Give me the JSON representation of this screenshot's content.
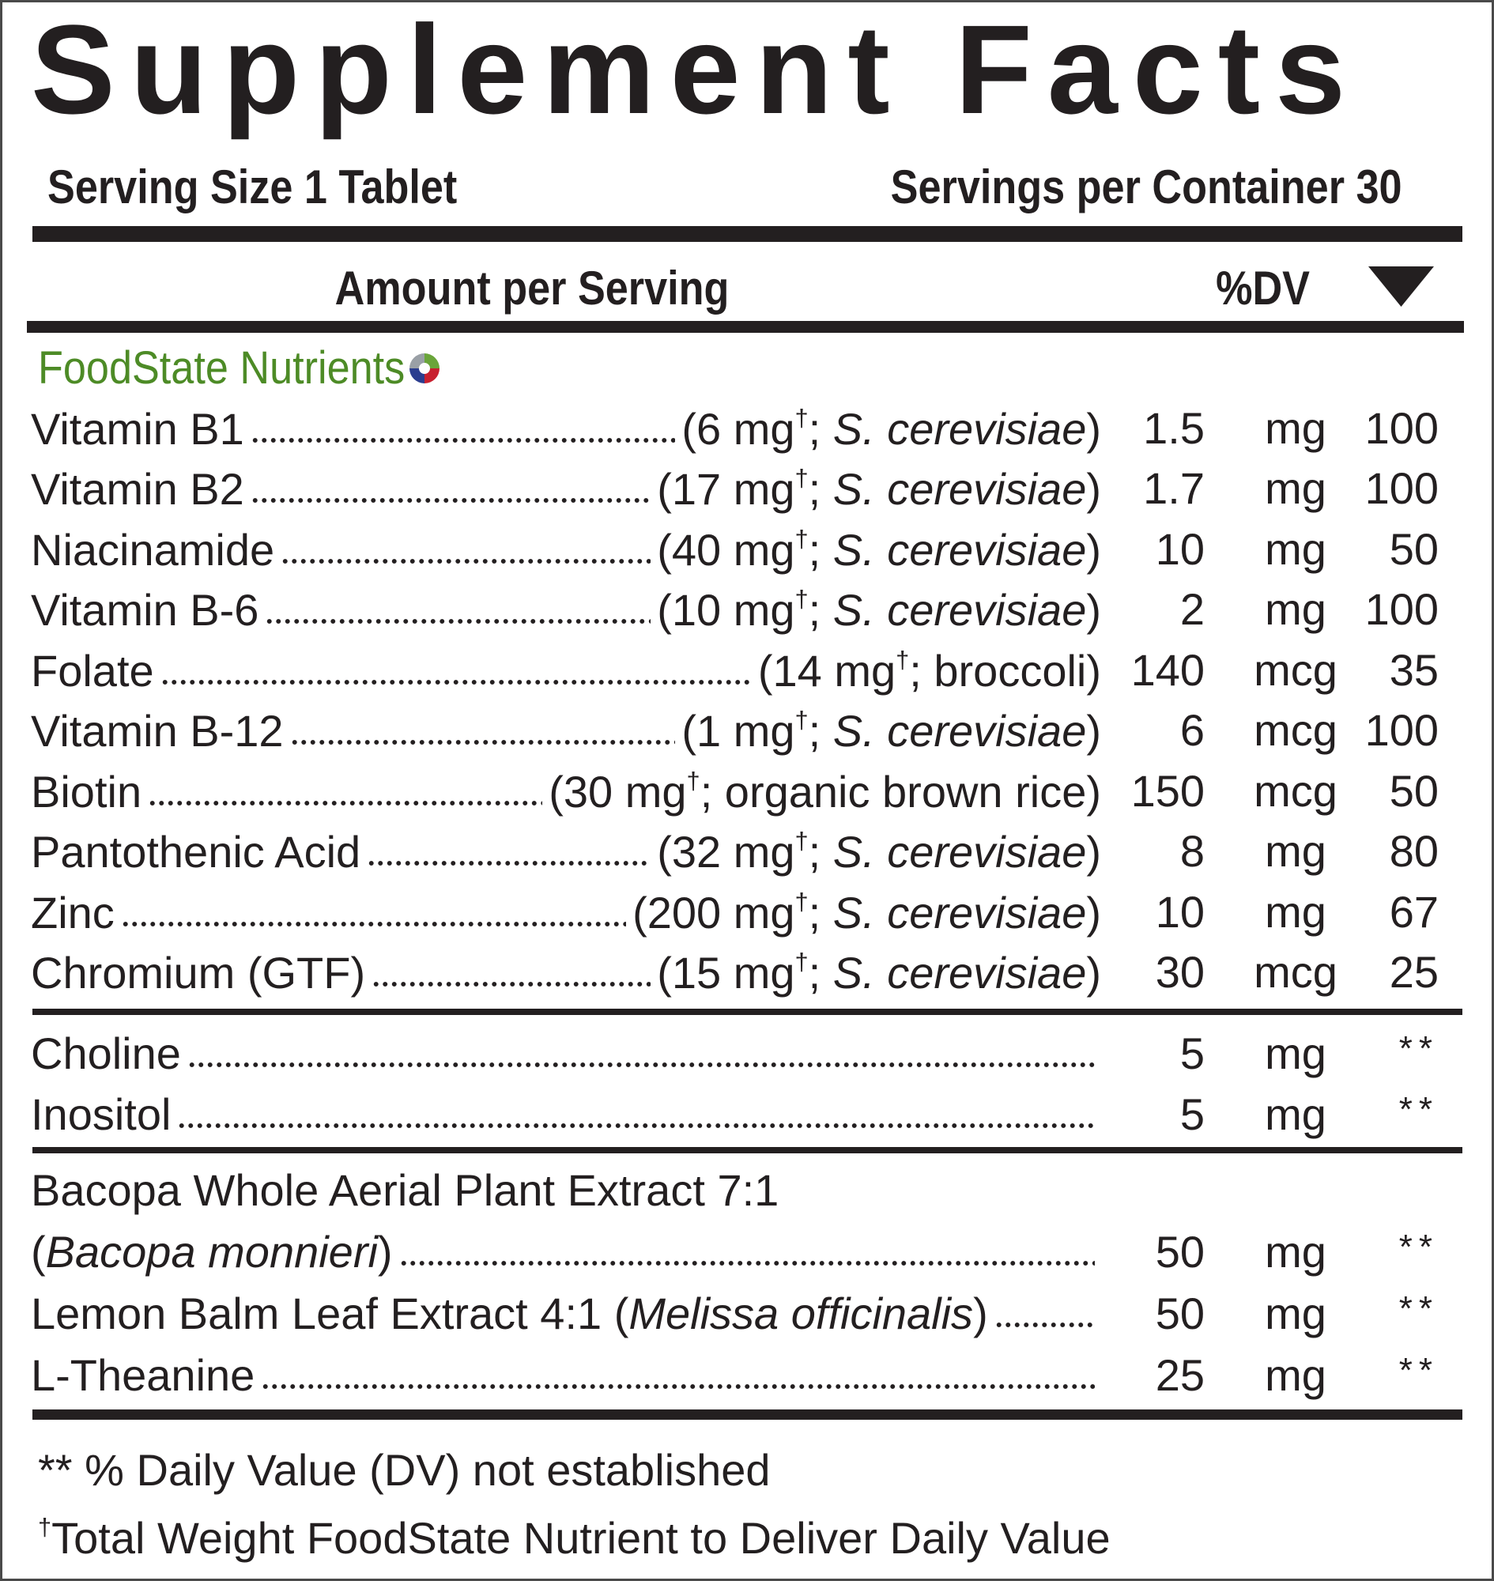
{
  "title": "Supplement Facts",
  "serving_size": "Serving Size 1 Tablet",
  "servings_per_container": "Servings per Container 30",
  "header": {
    "amount": "Amount per Serving",
    "dv": "%DV"
  },
  "section_title": "FoodState Nutrients",
  "groups": [
    {
      "rows": [
        {
          "name": [
            {
              "text": "Vitamin B1"
            }
          ],
          "source": [
            {
              "text": "(6 mg"
            },
            {
              "text": "†",
              "sup": true
            },
            {
              "text": "; "
            },
            {
              "text": "S. cerevisiae",
              "italic": true
            },
            {
              "text": ")"
            }
          ],
          "amount": 1.5,
          "unit": "mg",
          "dv": 100
        },
        {
          "name": [
            {
              "text": "Vitamin B2"
            }
          ],
          "source": [
            {
              "text": "(17 mg"
            },
            {
              "text": "†",
              "sup": true
            },
            {
              "text": "; "
            },
            {
              "text": "S. cerevisiae",
              "italic": true
            },
            {
              "text": ")"
            }
          ],
          "amount": 1.7,
          "unit": "mg",
          "dv": 100
        },
        {
          "name": [
            {
              "text": "Niacinamide"
            }
          ],
          "source": [
            {
              "text": "(40 mg"
            },
            {
              "text": "†",
              "sup": true
            },
            {
              "text": "; "
            },
            {
              "text": "S. cerevisiae",
              "italic": true
            },
            {
              "text": ")"
            }
          ],
          "amount": 10,
          "unit": "mg",
          "dv": 50
        },
        {
          "name": [
            {
              "text": "Vitamin B-6"
            }
          ],
          "source": [
            {
              "text": "(10 mg"
            },
            {
              "text": "†",
              "sup": true
            },
            {
              "text": "; "
            },
            {
              "text": "S. cerevisiae",
              "italic": true
            },
            {
              "text": ")"
            }
          ],
          "amount": 2,
          "unit": "mg",
          "dv": 100
        },
        {
          "name": [
            {
              "text": "Folate"
            }
          ],
          "source": [
            {
              "text": "(14 mg"
            },
            {
              "text": "†",
              "sup": true
            },
            {
              "text": "; broccoli)"
            }
          ],
          "amount": 140,
          "unit": "mcg",
          "dv": 35
        },
        {
          "name": [
            {
              "text": "Vitamin B-12"
            }
          ],
          "source": [
            {
              "text": "(1 mg"
            },
            {
              "text": "†",
              "sup": true
            },
            {
              "text": "; "
            },
            {
              "text": "S. cerevisiae",
              "italic": true
            },
            {
              "text": ")"
            }
          ],
          "amount": 6,
          "unit": "mcg",
          "dv": 100
        },
        {
          "name": [
            {
              "text": "Biotin"
            }
          ],
          "source": [
            {
              "text": "(30 mg"
            },
            {
              "text": "†",
              "sup": true
            },
            {
              "text": "; organic brown rice)"
            }
          ],
          "amount": 150,
          "unit": "mcg",
          "dv": 50
        },
        {
          "name": [
            {
              "text": "Pantothenic Acid"
            }
          ],
          "source": [
            {
              "text": "(32 mg"
            },
            {
              "text": "†",
              "sup": true
            },
            {
              "text": "; "
            },
            {
              "text": "S. cerevisiae",
              "italic": true
            },
            {
              "text": ")"
            }
          ],
          "amount": 8,
          "unit": "mg",
          "dv": 80
        },
        {
          "name": [
            {
              "text": "Zinc"
            }
          ],
          "source": [
            {
              "text": "(200 mg"
            },
            {
              "text": "†",
              "sup": true
            },
            {
              "text": "; "
            },
            {
              "text": "S. cerevisiae",
              "italic": true
            },
            {
              "text": ")"
            }
          ],
          "amount": 10,
          "unit": "mg",
          "dv": 67
        },
        {
          "name": [
            {
              "text": "Chromium (GTF)"
            }
          ],
          "source": [
            {
              "text": "(15 mg"
            },
            {
              "text": "†",
              "sup": true
            },
            {
              "text": "; "
            },
            {
              "text": "S. cerevisiae",
              "italic": true
            },
            {
              "text": ")"
            }
          ],
          "amount": 30,
          "unit": "mcg",
          "dv": 25
        }
      ]
    },
    {
      "rows": [
        {
          "name": [
            {
              "text": "Choline"
            }
          ],
          "amount": 5,
          "unit": "mg",
          "dv": "**"
        },
        {
          "name": [
            {
              "text": "Inositol"
            }
          ],
          "amount": 5,
          "unit": "mg",
          "dv": "**"
        }
      ]
    },
    {
      "rows": [
        {
          "name": [
            {
              "text": "Bacopa Whole Aerial Plant Extract 7:1"
            }
          ]
        },
        {
          "name": [
            {
              "text": "("
            },
            {
              "text": "Bacopa monnieri",
              "italic": true
            },
            {
              "text": ")"
            }
          ],
          "amount": 50,
          "unit": "mg",
          "dv": "**"
        },
        {
          "name": [
            {
              "text": "Lemon Balm Leaf Extract 4:1 ("
            },
            {
              "text": "Melissa officinalis",
              "italic": true
            },
            {
              "text": ")"
            }
          ],
          "amount": 50,
          "unit": "mg",
          "dv": "**"
        },
        {
          "name": [
            {
              "text": "L-Theanine"
            }
          ],
          "amount": 25,
          "unit": "mg",
          "dv": "**"
        }
      ]
    }
  ],
  "footnotes": [
    [
      {
        "text": "** % Daily Value (DV) not established"
      }
    ],
    [
      {
        "text": "†",
        "sup": true
      },
      {
        "text": "Total Weight FoodState Nutrient to Deliver Daily Value"
      }
    ]
  ]
}
